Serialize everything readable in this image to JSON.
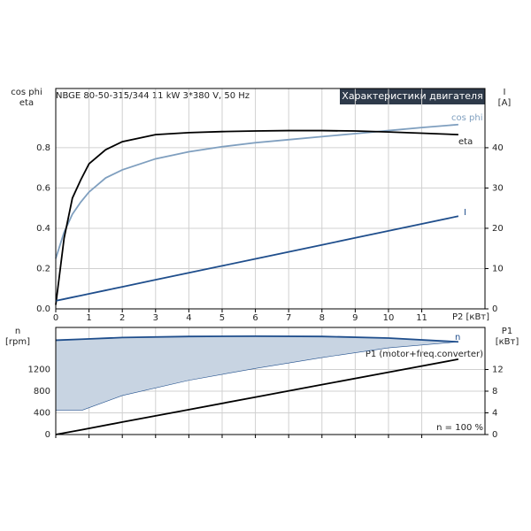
{
  "chart_data": [
    {
      "type": "line",
      "header": "NBGE 80-50-315/344   11 kW   3*380 V, 50 Hz",
      "title": "Характеристики двигателя",
      "ylabel": [
        "cos phi",
        "eta"
      ],
      "y2label": [
        "I",
        "[A]"
      ],
      "xlabel": "P2 [кВт]",
      "xlim": [
        0,
        12.9
      ],
      "xticks": [
        0,
        1,
        2,
        3,
        4,
        5,
        6,
        7,
        8,
        9,
        10,
        11
      ],
      "ylim": [
        0,
        1.094
      ],
      "yticks": [
        {
          "value": 0,
          "label": "0.0"
        },
        0.2,
        0.4,
        0.6,
        0.8
      ],
      "y2lim": [
        0,
        54.7
      ],
      "y2ticks": [
        0,
        10,
        20,
        30,
        40
      ],
      "grid": true,
      "x": [
        0,
        0.25,
        0.5,
        0.75,
        1,
        1.5,
        2,
        3,
        4,
        5,
        6,
        7,
        8,
        9,
        10,
        11,
        12.1
      ],
      "series": [
        {
          "name": "cos phi",
          "color": "#7f9fbf",
          "values": [
            0.25,
            0.38,
            0.47,
            0.53,
            0.58,
            0.65,
            0.69,
            0.745,
            0.78,
            0.805,
            0.825,
            0.84,
            0.855,
            0.87,
            0.885,
            0.9,
            0.915
          ]
        },
        {
          "name": "eta",
          "color": "#000000",
          "values": [
            0.02,
            0.35,
            0.55,
            0.64,
            0.72,
            0.79,
            0.83,
            0.865,
            0.875,
            0.88,
            0.883,
            0.885,
            0.885,
            0.883,
            0.878,
            0.872,
            0.865
          ]
        },
        {
          "name": "I",
          "color": "#1f4e8c",
          "axis": "y2",
          "values": [
            2,
            2.43,
            2.87,
            3.3,
            3.74,
            4.6,
            5.47,
            7.21,
            8.94,
            10.68,
            12.41,
            14.15,
            15.88,
            17.62,
            19.36,
            21.09,
            23
          ]
        }
      ]
    },
    {
      "type": "area",
      "ylabel": [
        "n",
        "[rpm]"
      ],
      "y2label": [
        "P1",
        "[кВт]"
      ],
      "annotations": [
        "P1 (motor+freq.converter)",
        "n = 100 %"
      ],
      "xlim": [
        0,
        12.9
      ],
      "xticks": [
        0,
        1,
        2,
        3,
        4,
        5,
        6,
        7,
        8,
        9,
        10,
        11
      ],
      "ylim": [
        0,
        1976
      ],
      "yticks": [
        0,
        400,
        800,
        1200
      ],
      "y2lim": [
        0,
        19.76
      ],
      "y2ticks": [
        0,
        4,
        8,
        12
      ],
      "grid": true,
      "x": [
        0,
        0.8,
        2,
        4,
        6,
        8,
        10,
        12.1
      ],
      "series": [
        {
          "name": "n",
          "color": "#1f4e8c",
          "fill": "#c8d4e2",
          "values": [
            1740,
            1760,
            1790,
            1810,
            1815,
            1810,
            1780,
            1710
          ],
          "lower_values": [
            450,
            450,
            720,
            1000,
            1220,
            1420,
            1600,
            1710
          ]
        },
        {
          "color": "#000000",
          "axis": "y2",
          "values": [
            0,
            0.9,
            2.3,
            4.6,
            6.9,
            9.2,
            11.5,
            13.9
          ]
        }
      ]
    }
  ]
}
